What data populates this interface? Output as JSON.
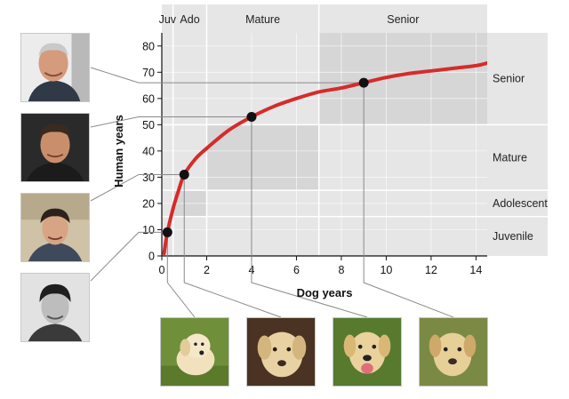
{
  "chart_data": {
    "type": "line",
    "xlabel": "Dog years",
    "ylabel": "Human years",
    "xlim": [
      0,
      14.5
    ],
    "ylim": [
      0,
      85
    ],
    "x_ticks": [
      0,
      2,
      4,
      6,
      8,
      10,
      12,
      14
    ],
    "y_ticks": [
      0,
      10,
      20,
      30,
      40,
      50,
      60,
      70,
      80
    ],
    "grid": true,
    "curve": {
      "x": [
        0.1,
        0.25,
        0.5,
        0.75,
        1,
        1.5,
        2,
        3,
        4,
        5,
        6,
        7,
        8,
        9,
        10,
        11,
        12,
        13,
        14,
        14.5
      ],
      "y": [
        1,
        9,
        18,
        25,
        31,
        37,
        41,
        48,
        53,
        57,
        60,
        62.5,
        64,
        66,
        68,
        69.5,
        70.5,
        71.5,
        72.5,
        73.5
      ]
    },
    "points": [
      {
        "x": 0.25,
        "y": 9
      },
      {
        "x": 1,
        "y": 31
      },
      {
        "x": 4,
        "y": 53
      },
      {
        "x": 9,
        "y": 66
      }
    ],
    "stages_top": [
      {
        "label": "Juv",
        "from": 0,
        "to": 0.5
      },
      {
        "label": "Ado",
        "from": 0.5,
        "to": 2
      },
      {
        "label": "Mature",
        "from": 2,
        "to": 7
      },
      {
        "label": "Senior",
        "from": 7,
        "to": 14.5
      }
    ],
    "stages_right": [
      {
        "label": "Senior",
        "from": 50,
        "to": 85
      },
      {
        "label": "Mature",
        "from": 25,
        "to": 50
      },
      {
        "label": "Adolescent",
        "from": 15,
        "to": 25
      },
      {
        "label": "Juvenile",
        "from": 0,
        "to": 15
      }
    ],
    "shaded_regions": [
      {
        "x": [
          0.5,
          2
        ],
        "y": [
          15,
          25
        ]
      },
      {
        "x": [
          2,
          7
        ],
        "y": [
          25,
          50
        ]
      },
      {
        "x": [
          7,
          14.5
        ],
        "y": [
          50,
          85
        ]
      }
    ]
  },
  "colors": {
    "curve": "#d62b2b",
    "band": "#e6e6e6",
    "highlight": "#d6d6d6",
    "grid": "#ffffff",
    "point": "#111111",
    "leader": "#8a8a8a"
  },
  "photos": {
    "human": [
      "human-face-adult-senior",
      "human-face-adult-mature",
      "human-face-teen-adolescent",
      "human-face-child-juvenile"
    ],
    "dog": [
      "puppy-juvenile",
      "dog-adolescent",
      "dog-mature",
      "dog-senior"
    ]
  }
}
